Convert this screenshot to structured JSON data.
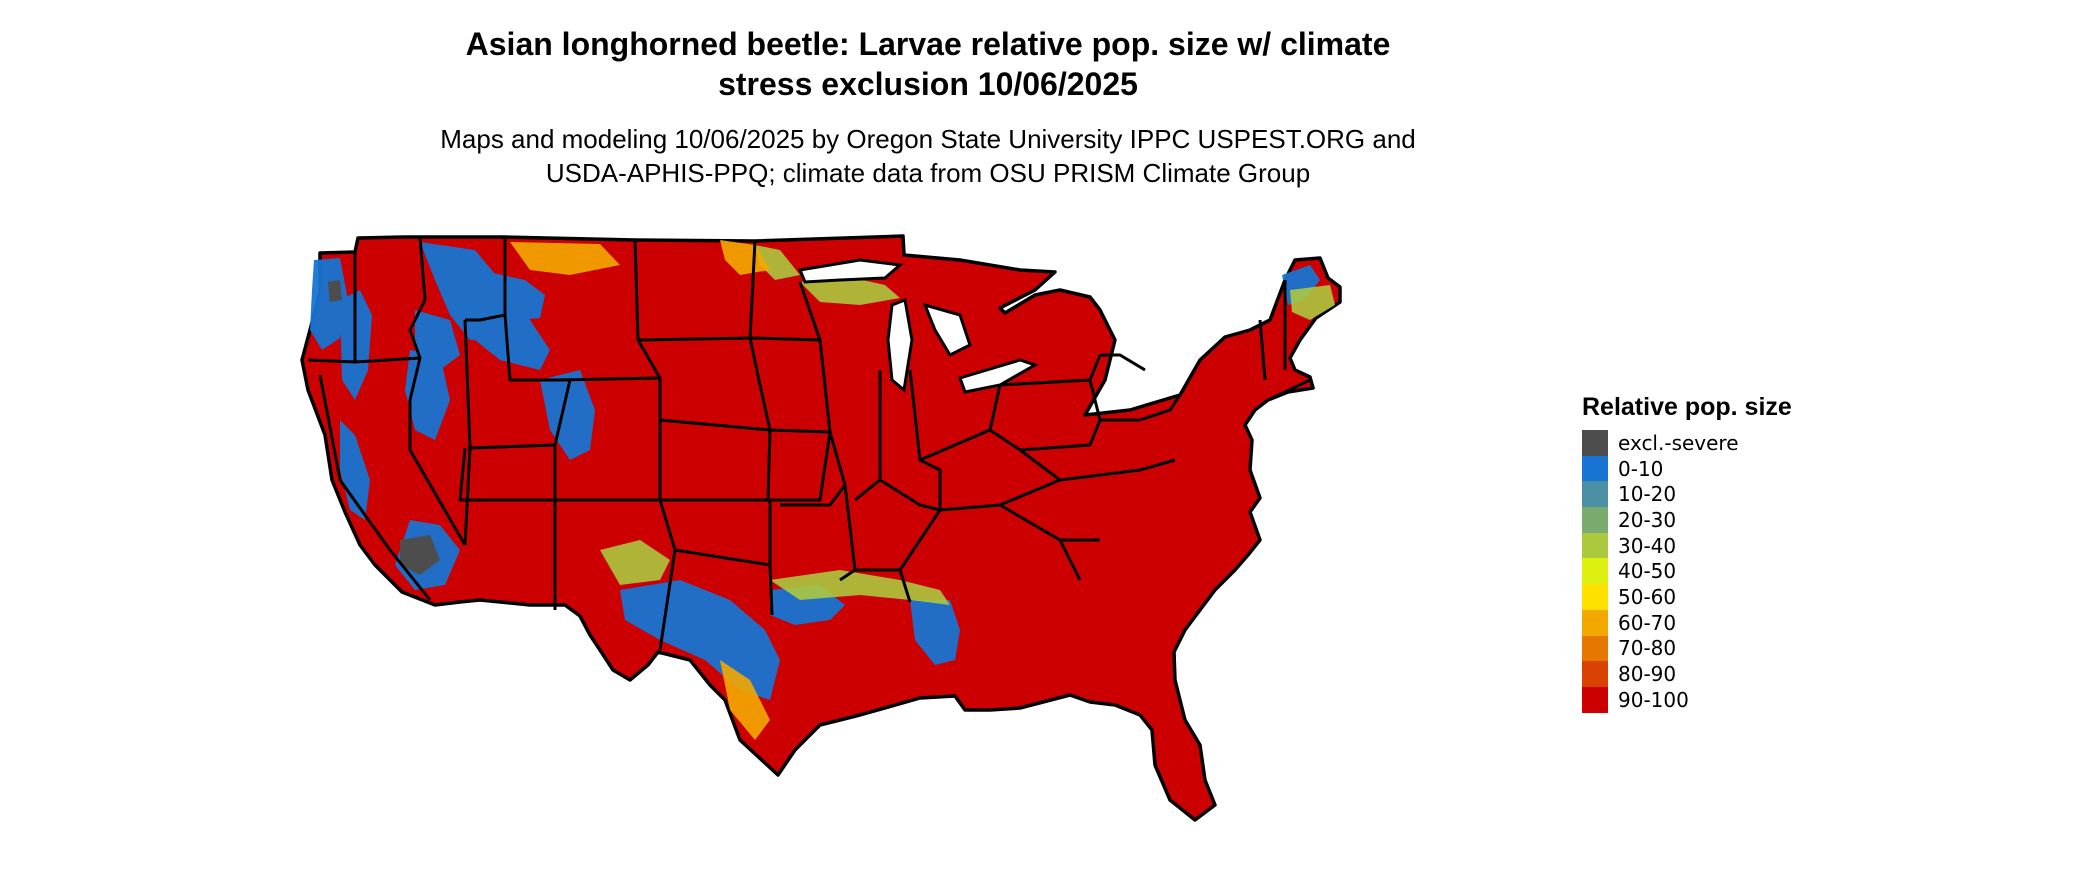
{
  "title": {
    "line1": "Asian longhorned beetle: Larvae relative pop. size w/ climate",
    "line2": "stress exclusion 10/06/2025"
  },
  "subtitle": {
    "line1": "Maps and modeling 10/06/2025 by Oregon State University IPPC USPEST.ORG and",
    "line2": "USDA-APHIS-PPQ; climate data from OSU PRISM Climate Group"
  },
  "legend": {
    "title": "Relative pop. size",
    "items": [
      {
        "label": "excl.-severe",
        "color": "#4d4d4d"
      },
      {
        "label": "0-10",
        "color": "#1874d2"
      },
      {
        "label": "10-20",
        "color": "#4a8fa4"
      },
      {
        "label": "20-30",
        "color": "#7aab6e"
      },
      {
        "label": "30-40",
        "color": "#acc83f"
      },
      {
        "label": "40-50",
        "color": "#def010"
      },
      {
        "label": "50-60",
        "color": "#ffe100"
      },
      {
        "label": "60-70",
        "color": "#f3a800"
      },
      {
        "label": "70-80",
        "color": "#e67800"
      },
      {
        "label": "80-90",
        "color": "#d94200"
      },
      {
        "label": "90-100",
        "color": "#cc0000"
      }
    ]
  },
  "map": {
    "region": "contiguous-united-states",
    "boundaries": "state-borders",
    "dominant_class": "90-100"
  }
}
